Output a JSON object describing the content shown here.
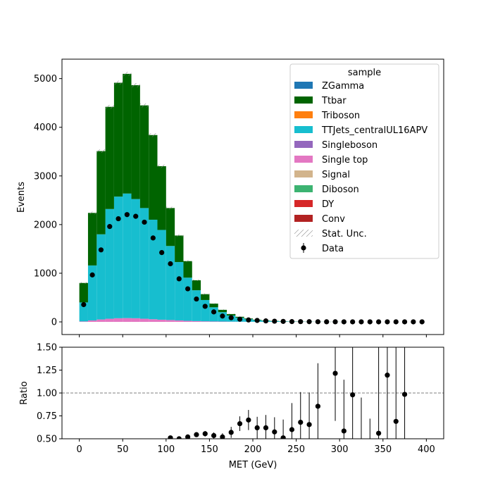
{
  "chart_data": {
    "type": "bar",
    "stacked": true,
    "xlabel": "MET (GeV)",
    "xlim": [
      -20,
      420
    ],
    "x_ticks": [
      0,
      50,
      100,
      150,
      200,
      250,
      300,
      350,
      400
    ],
    "main": {
      "ylabel": "Events",
      "ylim": [
        -260,
        5400
      ],
      "y_ticks": [
        0,
        1000,
        2000,
        3000,
        4000,
        5000
      ]
    },
    "ratio": {
      "ylabel": "Ratio",
      "ylim": [
        0.5,
        1.5
      ],
      "y_ticks": [
        0.5,
        0.75,
        1.0,
        1.25,
        1.5
      ],
      "y_tick_labels": [
        "0.50",
        "0.75",
        "1.00",
        "1.25",
        "1.50"
      ],
      "reference_line": 1.0
    },
    "bin_edges": [
      0,
      10,
      20,
      30,
      40,
      50,
      60,
      70,
      80,
      90,
      100,
      110,
      120,
      130,
      140,
      150,
      160,
      170,
      180,
      190,
      200,
      210,
      220,
      230,
      240,
      250,
      260,
      270,
      280,
      290,
      300,
      310,
      320,
      330,
      340,
      350,
      360,
      370,
      380,
      390,
      400
    ],
    "bin_centers": [
      5,
      15,
      25,
      35,
      45,
      55,
      65,
      75,
      85,
      95,
      105,
      115,
      125,
      135,
      145,
      155,
      165,
      175,
      185,
      195,
      205,
      215,
      225,
      235,
      245,
      255,
      265,
      275,
      285,
      295,
      305,
      315,
      325,
      335,
      345,
      355,
      365,
      375,
      385,
      395
    ],
    "legend": {
      "title": "sample",
      "position": "top-right",
      "entries": [
        {
          "label": "ZGamma",
          "color": "#1f77b4",
          "kind": "patch"
        },
        {
          "label": "Ttbar",
          "color": "#006400",
          "kind": "patch"
        },
        {
          "label": "Triboson",
          "color": "#ff7f0e",
          "kind": "patch"
        },
        {
          "label": "TTJets_centralUL16APV",
          "color": "#17becf",
          "kind": "patch"
        },
        {
          "label": "Singleboson",
          "color": "#9467bd",
          "kind": "patch"
        },
        {
          "label": "Single top",
          "color": "#e377c2",
          "kind": "patch"
        },
        {
          "label": "Signal",
          "color": "#d2b48c",
          "kind": "patch"
        },
        {
          "label": "Diboson",
          "color": "#3cb371",
          "kind": "patch"
        },
        {
          "label": "DY",
          "color": "#d62728",
          "kind": "patch"
        },
        {
          "label": "Conv",
          "color": "#b22222",
          "kind": "patch"
        },
        {
          "label": "Stat. Unc.",
          "color": "#808080",
          "kind": "hatch"
        },
        {
          "label": "Data",
          "color": "#000000",
          "kind": "errorbar"
        }
      ]
    },
    "series": [
      {
        "name": "Single top",
        "color": "#e377c2",
        "values": [
          10,
          30,
          50,
          65,
          75,
          78,
          75,
          65,
          55,
          45,
          38,
          30,
          22,
          17,
          12,
          9,
          7,
          5,
          4,
          3,
          2,
          2,
          1,
          1,
          1,
          1,
          0,
          0,
          0,
          0,
          0,
          0,
          0,
          0,
          0,
          0,
          0,
          0,
          0,
          0
        ]
      },
      {
        "name": "TTJets_centralUL16APV",
        "color": "#17becf",
        "values": [
          390,
          1130,
          1750,
          2255,
          2500,
          2560,
          2450,
          2275,
          2045,
          1845,
          1522,
          1200,
          887,
          633,
          438,
          291,
          193,
          126,
          81,
          53,
          34,
          22,
          14,
          9,
          6,
          4,
          3,
          2,
          1,
          1,
          1,
          0,
          0,
          0,
          0,
          0,
          0,
          0,
          0,
          0
        ]
      },
      {
        "name": "Ttbar",
        "color": "#006400",
        "values": [
          400,
          1080,
          1710,
          2100,
          2340,
          2460,
          2340,
          2110,
          1740,
          1310,
          780,
          545,
          340,
          205,
          120,
          75,
          48,
          30,
          20,
          14,
          9,
          6,
          4,
          3,
          2,
          2,
          1,
          1,
          1,
          1,
          0,
          0,
          0,
          0,
          0,
          0,
          0,
          0,
          0,
          0
        ]
      }
    ],
    "data": {
      "name": "Data",
      "values": [
        355,
        965,
        1480,
        1960,
        2120,
        2205,
        2170,
        2050,
        1725,
        1425,
        1195,
        885,
        680,
        470,
        320,
        205,
        120,
        85,
        55,
        40,
        30,
        20,
        14,
        10,
        6,
        5,
        4,
        3,
        2,
        2,
        1,
        1,
        1,
        1,
        1,
        1,
        1,
        1,
        1,
        1
      ]
    },
    "ratio_points": [
      {
        "x": 105,
        "y": 0.51,
        "err": 0.02
      },
      {
        "x": 115,
        "y": 0.5,
        "err": 0.02
      },
      {
        "x": 125,
        "y": 0.52,
        "err": 0.02
      },
      {
        "x": 135,
        "y": 0.545,
        "err": 0.025
      },
      {
        "x": 145,
        "y": 0.555,
        "err": 0.03
      },
      {
        "x": 155,
        "y": 0.535,
        "err": 0.035
      },
      {
        "x": 165,
        "y": 0.52,
        "err": 0.04
      },
      {
        "x": 175,
        "y": 0.57,
        "err": 0.06
      },
      {
        "x": 185,
        "y": 0.665,
        "err": 0.08
      },
      {
        "x": 195,
        "y": 0.705,
        "err": 0.11
      },
      {
        "x": 205,
        "y": 0.62,
        "err": 0.12
      },
      {
        "x": 215,
        "y": 0.62,
        "err": 0.14
      },
      {
        "x": 225,
        "y": 0.575,
        "err": 0.16
      },
      {
        "x": 235,
        "y": 0.51,
        "err": 0.2
      },
      {
        "x": 245,
        "y": 0.6,
        "err": 0.29
      },
      {
        "x": 255,
        "y": 0.68,
        "err": 0.33
      },
      {
        "x": 265,
        "y": 0.655,
        "err": 0.35
      },
      {
        "x": 275,
        "y": 0.855,
        "err": 0.47
      },
      {
        "x": 295,
        "y": 1.215,
        "err": 0.52
      },
      {
        "x": 305,
        "y": 0.585,
        "err": 0.56
      },
      {
        "x": 315,
        "y": 0.98,
        "err": 0.6
      },
      {
        "x": 325,
        "y": null,
        "err": 0.45
      },
      {
        "x": 335,
        "y": null,
        "err": 0.22
      },
      {
        "x": 345,
        "y": 0.56,
        "err": 0.95
      },
      {
        "x": 355,
        "y": 1.195,
        "err": 1.0
      },
      {
        "x": 365,
        "y": 0.69,
        "err": 1.0
      },
      {
        "x": 375,
        "y": 0.985,
        "err": 1.0
      }
    ]
  }
}
